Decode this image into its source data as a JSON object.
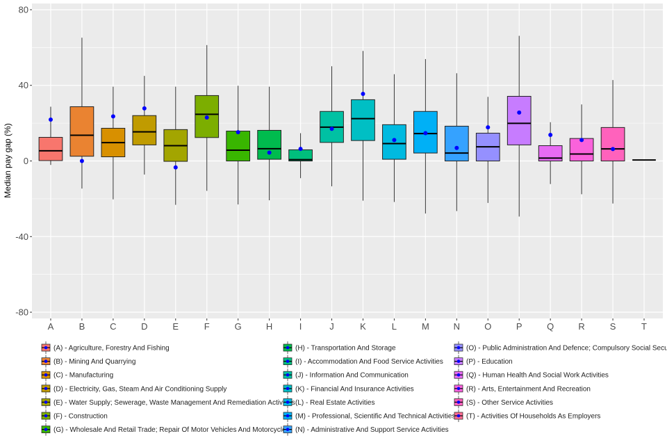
{
  "chart_data": {
    "type": "boxplot",
    "title": "",
    "xlabel": "",
    "ylabel": "Median pay gap (%)",
    "ylim": [
      -80,
      80
    ],
    "yticks": [
      -80,
      -40,
      0,
      40,
      80
    ],
    "grid": true,
    "legend_position": "bottom",
    "mean_point_color": "#0000FF",
    "categories": [
      "A",
      "B",
      "C",
      "D",
      "E",
      "F",
      "G",
      "H",
      "I",
      "J",
      "K",
      "L",
      "M",
      "N",
      "O",
      "P",
      "Q",
      "R",
      "S",
      "T"
    ],
    "colors": [
      "#F8766D",
      "#EA8331",
      "#D89000",
      "#C09B00",
      "#A3A500",
      "#7CAE00",
      "#39B600",
      "#00BB4E",
      "#00BF7D",
      "#00C1A3",
      "#00BFC4",
      "#00BAE0",
      "#00B0F6",
      "#35A2FF",
      "#9590FF",
      "#C77CFF",
      "#E76BF3",
      "#FA62DB",
      "#FF62BC",
      "#FF6C91"
    ],
    "boxes": [
      {
        "category": "A",
        "whisker_low": -2.1,
        "q1": 0.2,
        "median": 5.4,
        "q3": 12.5,
        "whisker_high": 28.7,
        "mean": 21.9
      },
      {
        "category": "B",
        "whisker_low": -14.6,
        "q1": 2.5,
        "median": 13.6,
        "q3": 28.7,
        "whisker_high": 65.2,
        "mean": 0.0
      },
      {
        "category": "C",
        "whisker_low": -20.3,
        "q1": 2.2,
        "median": 9.7,
        "q3": 17.3,
        "whisker_high": 39.3,
        "mean": 23.6
      },
      {
        "category": "D",
        "whisker_low": -7.2,
        "q1": 8.5,
        "median": 15.4,
        "q3": 24.0,
        "whisker_high": 45.0,
        "mean": 27.8
      },
      {
        "category": "E",
        "whisker_low": -23.2,
        "q1": -0.2,
        "median": 8.1,
        "q3": 16.6,
        "whisker_high": 39.3,
        "mean": -3.4
      },
      {
        "category": "F",
        "whisker_low": -15.8,
        "q1": 12.4,
        "median": 24.7,
        "q3": 34.6,
        "whisker_high": 61.3,
        "mean": 23.0
      },
      {
        "category": "G",
        "whisker_low": -23.0,
        "q1": 0.0,
        "median": 5.7,
        "q3": 15.8,
        "whisker_high": 39.8,
        "mean": 15.2
      },
      {
        "category": "H",
        "whisker_low": -20.8,
        "q1": 0.9,
        "median": 6.5,
        "q3": 16.2,
        "whisker_high": 39.3,
        "mean": 4.4
      },
      {
        "category": "I",
        "whisker_low": -9.1,
        "q1": 0.0,
        "median": 0.7,
        "q3": 5.9,
        "whisker_high": 14.7,
        "mean": 6.4
      },
      {
        "category": "J",
        "whisker_low": -13.4,
        "q1": 9.8,
        "median": 17.9,
        "q3": 26.2,
        "whisker_high": 50.1,
        "mean": 17.0
      },
      {
        "category": "K",
        "whisker_low": -21.0,
        "q1": 10.8,
        "median": 22.4,
        "q3": 32.4,
        "whisker_high": 58.2,
        "mean": 35.5
      },
      {
        "category": "L",
        "whisker_low": -21.7,
        "q1": 0.9,
        "median": 9.2,
        "q3": 19.2,
        "whisker_high": 45.9,
        "mean": 11.1
      },
      {
        "category": "M",
        "whisker_low": -27.8,
        "q1": 4.2,
        "median": 14.5,
        "q3": 26.2,
        "whisker_high": 53.9,
        "mean": 14.7
      },
      {
        "category": "N",
        "whisker_low": -26.5,
        "q1": 0.0,
        "median": 4.2,
        "q3": 18.4,
        "whisker_high": 46.4,
        "mean": 6.9
      },
      {
        "category": "O",
        "whisker_low": -22.2,
        "q1": 0.0,
        "median": 7.5,
        "q3": 14.7,
        "whisker_high": 33.9,
        "mean": 17.8
      },
      {
        "category": "P",
        "whisker_low": -29.4,
        "q1": 8.5,
        "median": 19.9,
        "q3": 34.2,
        "whisker_high": 66.2,
        "mean": 25.6
      },
      {
        "category": "Q",
        "whisker_low": -12.2,
        "q1": 0.0,
        "median": 1.5,
        "q3": 8.1,
        "whisker_high": 20.5,
        "mean": 13.8
      },
      {
        "category": "R",
        "whisker_low": -17.6,
        "q1": 0.0,
        "median": 3.7,
        "q3": 11.9,
        "whisker_high": 29.9,
        "mean": 11.1
      },
      {
        "category": "S",
        "whisker_low": -22.5,
        "q1": 0.0,
        "median": 6.4,
        "q3": 17.7,
        "whisker_high": 42.8,
        "mean": 6.3
      },
      {
        "category": "T",
        "whisker_low": 0.5,
        "q1": 0.5,
        "median": 0.5,
        "q3": 0.5,
        "whisker_high": 0.5,
        "mean": 0.5
      }
    ],
    "legend": [
      "(A) - Agriculture, Forestry And Fishing",
      "(B) - Mining And Quarrying",
      "(C) - Manufacturing",
      "(D) - Electricity, Gas, Steam And Air Conditioning Supply",
      "(E) - Water Supply; Sewerage, Waste Management And Remediation Activities",
      "(F) - Construction",
      "(G) - Wholesale And Retail Trade; Repair Of Motor Vehicles And Motorcycles",
      "(H) - Transportation And Storage",
      "(I) - Accommodation And Food Service Activities",
      "(J) - Information And Communication",
      "(K) - Financial And Insurance Activities",
      "(L) - Real Estate Activities",
      "(M) - Professional, Scientific And Technical Activities",
      "(N) - Administrative And Support Service Activities",
      "(O) - Public Administration And Defence; Compulsory Social Security",
      "(P) - Education",
      "(Q) - Human Health And Social Work Activities",
      "(R) - Arts, Entertainment And Recreation",
      "(S) - Other Service Activities",
      "(T) - Activities Of Households As Employers"
    ]
  }
}
